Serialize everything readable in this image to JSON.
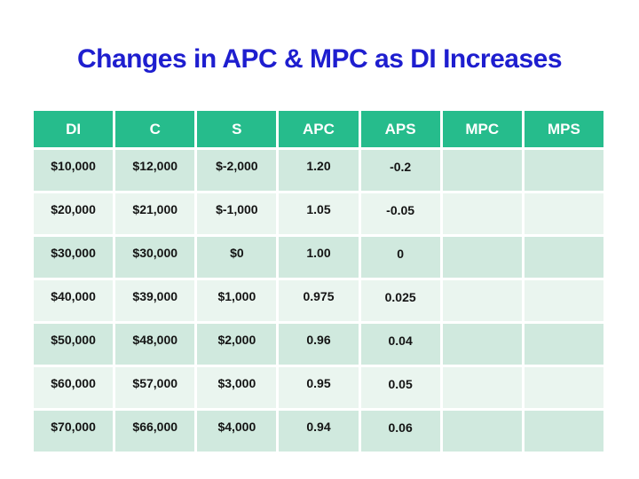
{
  "slide": {
    "title": "Changes in APC & MPC as DI Increases"
  },
  "table": {
    "columns": [
      "DI",
      "C",
      "S",
      "APC",
      "APS",
      "MPC",
      "MPS"
    ],
    "rows": [
      [
        "$10,000",
        "$12,000",
        "$-2,000",
        "1.20",
        "-0.2",
        "",
        ""
      ],
      [
        "$20,000",
        "$21,000",
        "$-1,000",
        "1.05",
        "-0.05",
        "",
        ""
      ],
      [
        "$30,000",
        "$30,000",
        "$0",
        "1.00",
        "0",
        "",
        ""
      ],
      [
        "$40,000",
        "$39,000",
        "$1,000",
        "0.975",
        "0.025",
        "",
        ""
      ],
      [
        "$50,000",
        "$48,000",
        "$2,000",
        "0.96",
        "0.04",
        "",
        ""
      ],
      [
        "$60,000",
        "$57,000",
        "$3,000",
        "0.95",
        "0.05",
        "",
        ""
      ],
      [
        "$70,000",
        "$66,000",
        "$4,000",
        "0.94",
        "0.06",
        "",
        ""
      ]
    ]
  },
  "colors": {
    "title_blue": "#1e1ecf",
    "header_green": "#26bc8c",
    "row_green_dark": "#d0e9de",
    "row_green_light": "#eaf5ef",
    "aps_red": "#c4282d",
    "header_text": "#ffffff",
    "cell_text": "#141414"
  }
}
